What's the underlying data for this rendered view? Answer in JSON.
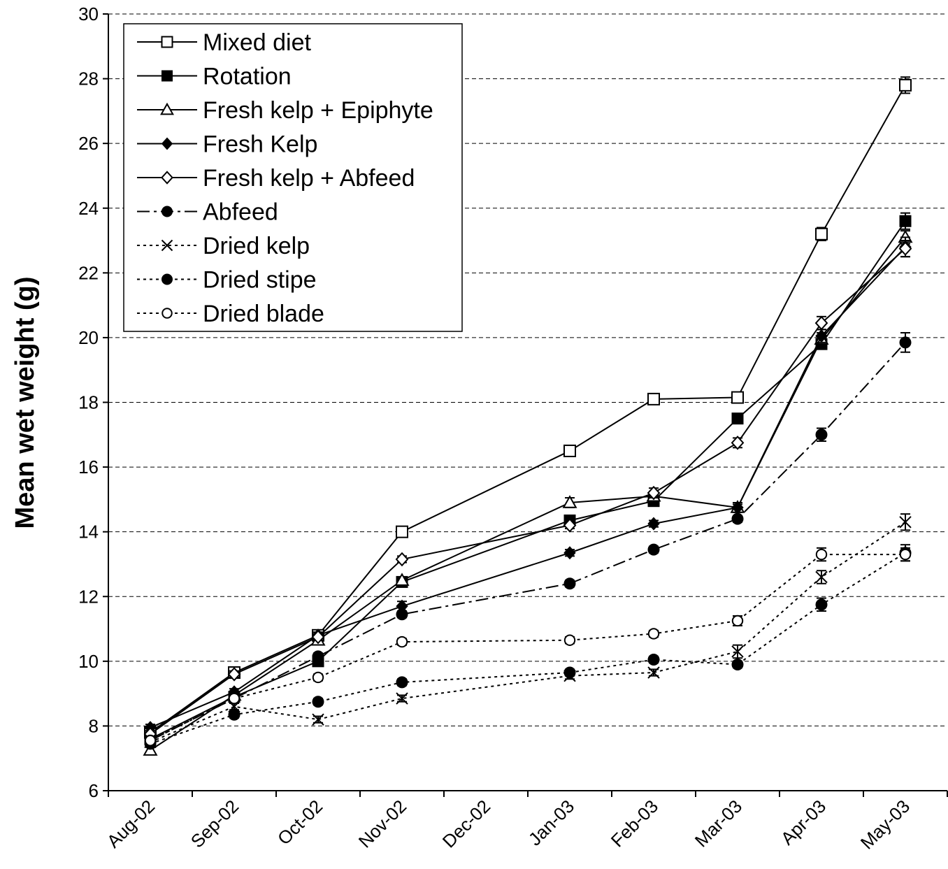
{
  "chart_data": {
    "type": "line",
    "ylabel": "Mean wet weight (g)",
    "xlabel": "",
    "ylim": [
      6,
      30
    ],
    "yticks": [
      6,
      8,
      10,
      12,
      14,
      16,
      18,
      20,
      22,
      24,
      26,
      28,
      30
    ],
    "ytick_labels": [
      "6",
      "8",
      "10",
      "12",
      "14",
      "16",
      "18",
      "20",
      "22",
      "24",
      "26",
      "28",
      "30"
    ],
    "xtick_labels": [
      "Aug-02",
      "Sep-02",
      "Oct-02",
      "Nov-02",
      "Dec-02",
      "Jan-03",
      "Feb-03",
      "Mar-03",
      "Apr-03",
      "May-03"
    ],
    "sample_months": [
      "Aug-02",
      "Sep-02",
      "Oct-02",
      "Nov-02",
      "Jan-03",
      "Feb-03",
      "Mar-03",
      "Apr-03",
      "May-03"
    ],
    "grid": "horizontal dashed",
    "legend_position": "top-left",
    "series": [
      {
        "name": "Mixed diet",
        "marker": "square-open",
        "line": "solid",
        "color": "#000000",
        "values": [
          7.8,
          9.65,
          10.8,
          14.0,
          16.5,
          18.1,
          18.15,
          23.2,
          27.8
        ],
        "errors": [
          0.1,
          0.1,
          0.1,
          0.1,
          0.1,
          0.1,
          0.1,
          0.2,
          0.25
        ]
      },
      {
        "name": "Rotation",
        "marker": "square-filled",
        "line": "solid",
        "color": "#000000",
        "values": [
          7.6,
          8.9,
          10.0,
          12.45,
          14.35,
          14.95,
          17.5,
          19.8,
          23.6
        ],
        "errors": [
          0.1,
          0.1,
          0.1,
          0.1,
          0.1,
          0.1,
          0.1,
          0.15,
          0.25
        ]
      },
      {
        "name": "Fresh kelp + Epiphyte",
        "marker": "triangle-open",
        "line": "solid",
        "color": "#000000",
        "values": [
          7.25,
          8.95,
          10.65,
          12.5,
          14.9,
          15.1,
          14.75,
          19.95,
          23.1
        ],
        "errors": [
          0.1,
          0.1,
          0.1,
          0.1,
          0.15,
          0.1,
          0.1,
          0.2,
          0.2
        ]
      },
      {
        "name": "Fresh Kelp",
        "marker": "diamond-filled",
        "line": "solid",
        "color": "#000000",
        "values": [
          7.95,
          9.05,
          10.8,
          11.7,
          13.35,
          14.25,
          14.75,
          20.05,
          22.8
        ],
        "errors": [
          0.1,
          0.1,
          0.1,
          0.15,
          0.1,
          0.1,
          0.15,
          0.2,
          0.3
        ]
      },
      {
        "name": "Fresh kelp + Abfeed",
        "marker": "diamond-open",
        "line": "solid",
        "color": "#000000",
        "values": [
          7.75,
          9.6,
          10.75,
          13.15,
          14.2,
          15.2,
          16.75,
          20.45,
          22.75
        ],
        "errors": [
          0.1,
          0.1,
          0.1,
          0.1,
          0.1,
          0.15,
          0.15,
          0.2,
          0.25
        ]
      },
      {
        "name": "Abfeed",
        "marker": "circle-filled",
        "line": "dashdot",
        "color": "#000000",
        "values": [
          7.55,
          8.85,
          10.15,
          11.45,
          12.4,
          13.45,
          14.4,
          17.0,
          19.85
        ],
        "errors": [
          0.1,
          0.1,
          0.1,
          0.1,
          0.1,
          0.1,
          0.1,
          0.2,
          0.3
        ]
      },
      {
        "name": "Dried kelp",
        "marker": "x",
        "line": "dotted",
        "color": "#000000",
        "values": [
          7.5,
          8.6,
          8.2,
          8.85,
          9.55,
          9.65,
          10.3,
          12.6,
          14.3
        ],
        "errors": [
          0.1,
          0.1,
          0.1,
          0.1,
          0.1,
          0.1,
          0.2,
          0.2,
          0.25
        ]
      },
      {
        "name": "Dried stipe",
        "marker": "circle-filled",
        "line": "dotted",
        "color": "#000000",
        "values": [
          7.45,
          8.35,
          8.75,
          9.35,
          9.65,
          10.05,
          9.9,
          11.75,
          13.35
        ],
        "errors": [
          0.1,
          0.1,
          0.1,
          0.1,
          0.1,
          0.1,
          0.1,
          0.2,
          0.25
        ]
      },
      {
        "name": "Dried blade",
        "marker": "circle-open",
        "line": "dotted",
        "color": "#000000",
        "values": [
          7.55,
          8.85,
          9.5,
          10.6,
          10.65,
          10.85,
          11.25,
          13.3,
          13.3
        ],
        "errors": [
          0.1,
          0.1,
          0.1,
          0.1,
          0.1,
          0.1,
          0.15,
          0.2,
          0.2
        ]
      }
    ]
  }
}
